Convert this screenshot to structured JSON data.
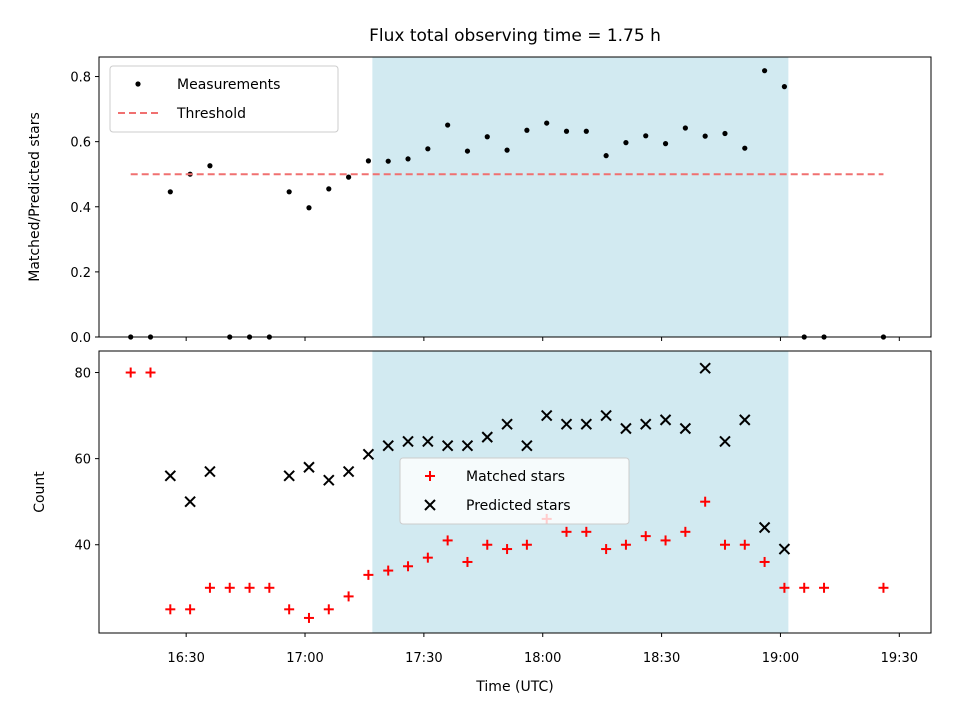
{
  "figure": {
    "title": "Flux total observing time = 1.75 h"
  },
  "chart_data": [
    {
      "type": "scatter",
      "title": "Flux total observing time = 1.75 h",
      "ylabel": "Matched/Predicted stars",
      "xlabel": "",
      "xlim": [
        "16:08",
        "19:38"
      ],
      "ylim": [
        0.0,
        0.86
      ],
      "yticks": [
        "0.0",
        "0.2",
        "0.4",
        "0.6",
        "0.8"
      ],
      "shaded_interval": [
        "17:17",
        "19:02"
      ],
      "shade_color": "#add8e6",
      "legend": {
        "placement": "top-left",
        "entries": [
          "Measurements",
          "Threshold"
        ]
      },
      "series": [
        {
          "name": "Measurements",
          "marker": "dot",
          "color": "#000000",
          "x": [
            "16:16",
            "16:21",
            "16:26",
            "16:31",
            "16:36",
            "16:41",
            "16:46",
            "16:51",
            "16:56",
            "17:01",
            "17:06",
            "17:11",
            "17:16",
            "17:21",
            "17:26",
            "17:31",
            "17:36",
            "17:41",
            "17:46",
            "17:51",
            "17:56",
            "18:01",
            "18:06",
            "18:11",
            "18:16",
            "18:21",
            "18:26",
            "18:31",
            "18:36",
            "18:41",
            "18:46",
            "18:51",
            "18:56",
            "19:01",
            "19:06",
            "19:11",
            "19:26"
          ],
          "y": [
            0.0,
            0.0,
            0.446,
            0.5,
            0.526,
            0.0,
            0.0,
            0.0,
            0.446,
            0.397,
            0.455,
            0.491,
            0.541,
            0.54,
            0.547,
            0.578,
            0.651,
            0.571,
            0.615,
            0.574,
            0.635,
            0.657,
            0.632,
            0.632,
            0.557,
            0.597,
            0.618,
            0.594,
            0.642,
            0.617,
            0.625,
            0.58,
            0.818,
            0.769,
            0.0,
            0.0,
            0.0
          ]
        },
        {
          "name": "Threshold",
          "marker": "dashed-line",
          "color": "#f07070",
          "x": [
            "16:16",
            "19:26"
          ],
          "y": [
            0.5,
            0.5
          ]
        }
      ]
    },
    {
      "type": "scatter",
      "xlabel": "Time (UTC)",
      "ylabel": "Count",
      "xlim": [
        "16:08",
        "19:38"
      ],
      "ylim": [
        19.5,
        85
      ],
      "xticks": [
        "16:30",
        "17:00",
        "17:30",
        "18:00",
        "18:30",
        "19:00",
        "19:30"
      ],
      "yticks": [
        "40",
        "60",
        "80"
      ],
      "shaded_interval": [
        "17:17",
        "19:02"
      ],
      "shade_color": "#add8e6",
      "legend": {
        "placement": "center",
        "entries": [
          "Matched stars",
          "Predicted stars"
        ]
      },
      "series": [
        {
          "name": "Matched stars",
          "marker": "plus",
          "color": "#ff0000",
          "x": [
            "16:16",
            "16:21",
            "16:26",
            "16:31",
            "16:36",
            "16:41",
            "16:46",
            "16:51",
            "16:56",
            "17:01",
            "17:06",
            "17:11",
            "17:16",
            "17:21",
            "17:26",
            "17:31",
            "17:36",
            "17:41",
            "17:46",
            "17:51",
            "17:56",
            "18:01",
            "18:06",
            "18:11",
            "18:16",
            "18:21",
            "18:26",
            "18:31",
            "18:36",
            "18:41",
            "18:46",
            "18:51",
            "18:56",
            "19:01",
            "19:06",
            "19:11",
            "19:26"
          ],
          "y": [
            80,
            80,
            25,
            25,
            30,
            30,
            30,
            30,
            25,
            23,
            25,
            28,
            33,
            34,
            35,
            37,
            41,
            36,
            40,
            39,
            40,
            46,
            43,
            43,
            39,
            40,
            42,
            41,
            43,
            50,
            40,
            40,
            36,
            30,
            30,
            30,
            30
          ]
        },
        {
          "name": "Predicted stars",
          "marker": "x",
          "color": "#000000",
          "x": [
            "16:26",
            "16:31",
            "16:36",
            "16:56",
            "17:01",
            "17:06",
            "17:11",
            "17:16",
            "17:21",
            "17:26",
            "17:31",
            "17:36",
            "17:41",
            "17:46",
            "17:51",
            "17:56",
            "18:01",
            "18:06",
            "18:11",
            "18:16",
            "18:21",
            "18:26",
            "18:31",
            "18:36",
            "18:41",
            "18:46",
            "18:51",
            "18:56",
            "19:01"
          ],
          "y": [
            56,
            50,
            57,
            56,
            58,
            55,
            57,
            61,
            63,
            64,
            64,
            63,
            63,
            65,
            68,
            63,
            70,
            68,
            68,
            70,
            67,
            68,
            69,
            67,
            81,
            64,
            69,
            44,
            39
          ]
        }
      ]
    }
  ]
}
